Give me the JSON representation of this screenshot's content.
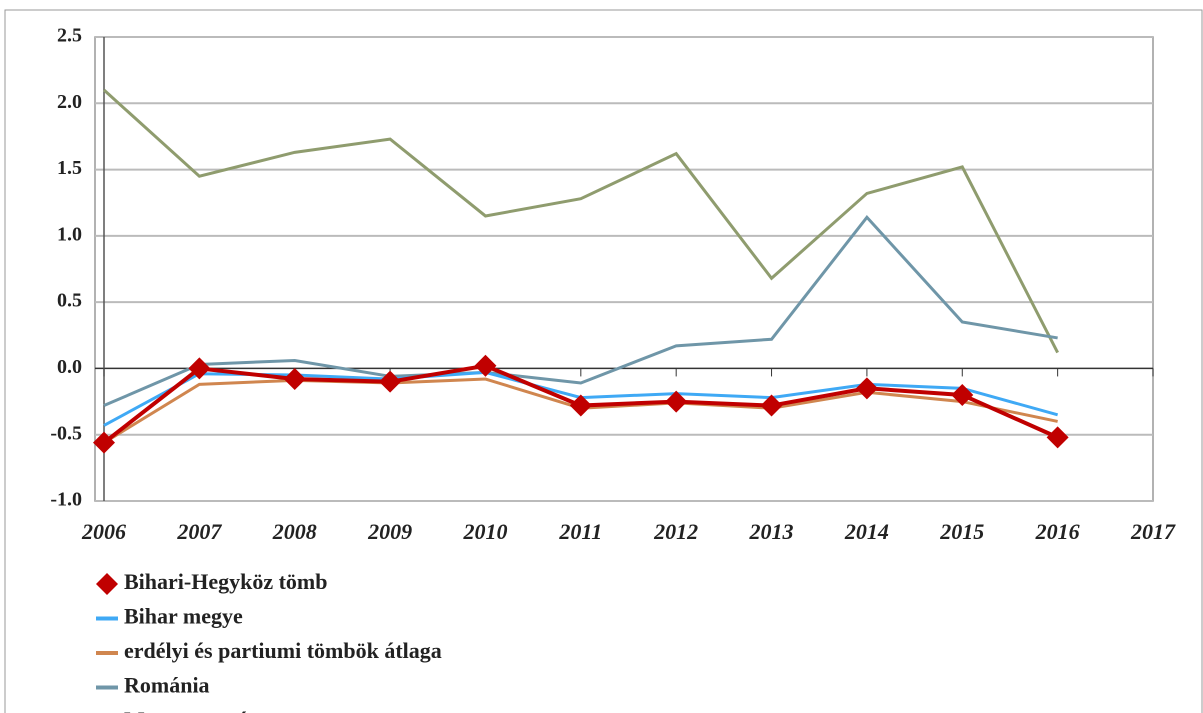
{
  "chart_data": {
    "type": "line",
    "x": [
      2006,
      2007,
      2008,
      2009,
      2010,
      2011,
      2012,
      2013,
      2014,
      2015,
      2016
    ],
    "xlim": [
      2006,
      2017
    ],
    "xticks": [
      2006,
      2007,
      2008,
      2009,
      2010,
      2011,
      2012,
      2013,
      2014,
      2015,
      2016,
      2017
    ],
    "ylim": [
      -1.0,
      2.5
    ],
    "yticks": [
      {
        "value": -1.0,
        "label": "-1.0"
      },
      {
        "value": -0.5,
        "label": "-0.5"
      },
      {
        "value": 0,
        "label": "0.0"
      },
      {
        "value": 0.5,
        "label": "0.5"
      },
      {
        "value": 1.0,
        "label": "1.0"
      },
      {
        "value": 1.5,
        "label": "1.5"
      },
      {
        "value": 2.0,
        "label": "2.0"
      },
      {
        "value": 2.5,
        "label": "2.5"
      }
    ],
    "grid": true,
    "series": [
      {
        "name": "Bihari-Hegyköz tömb",
        "color": "#c00000",
        "marker": "diamond",
        "values": [
          -0.56,
          0.0,
          -0.08,
          -0.1,
          0.02,
          -0.28,
          -0.25,
          -0.28,
          -0.15,
          -0.2,
          -0.52
        ]
      },
      {
        "name": "Bihar megye",
        "color": "#3fa9f5",
        "values": [
          -0.43,
          -0.04,
          -0.05,
          -0.08,
          -0.03,
          -0.22,
          -0.19,
          -0.22,
          -0.12,
          -0.15,
          -0.35
        ]
      },
      {
        "name": "erdélyi és partiumi tömbök átlaga",
        "color": "#d0864f",
        "values": [
          -0.56,
          -0.12,
          -0.09,
          -0.11,
          -0.08,
          -0.3,
          -0.26,
          -0.3,
          -0.18,
          -0.25,
          -0.4
        ]
      },
      {
        "name": "Románia",
        "color": "#6f96a8",
        "values": [
          -0.28,
          0.03,
          0.06,
          -0.06,
          -0.03,
          -0.11,
          0.17,
          0.22,
          1.14,
          0.35,
          0.23
        ]
      },
      {
        "name": "Magyarország",
        "color": "#8f9c6e",
        "values": [
          2.1,
          1.45,
          1.63,
          1.73,
          1.15,
          1.28,
          1.62,
          0.68,
          1.32,
          1.52,
          0.12
        ]
      }
    ]
  }
}
